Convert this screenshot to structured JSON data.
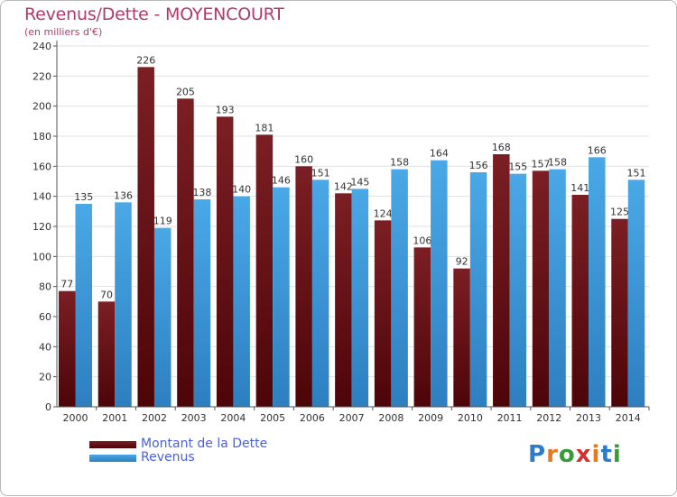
{
  "title": "Revenus/Dette - MOYENCOURT",
  "subtitle": "(en milliers d'€)",
  "logo": {
    "letters": [
      "P",
      "r",
      "o",
      "x",
      "i",
      "t",
      "i"
    ],
    "colors": [
      "#2e7cc9",
      "#e87a1c",
      "#3a9a3a",
      "#d4312e",
      "#e87a1c",
      "#2e7cc9",
      "#3a9a3a"
    ]
  },
  "legend": {
    "debt_label": "Montant de la Dette",
    "revenue_label": "Revenus"
  },
  "colors": {
    "debt": "#7b1f24",
    "debt_dark": "#4d0508",
    "revenue": "#4aa8e6",
    "revenue_dark": "#2d7fc0",
    "axis": "#555555",
    "grid": "#e0e0e0"
  },
  "chart_data": {
    "type": "bar",
    "title": "Revenus/Dette - MOYENCOURT",
    "ylabel": "(en milliers d'€)",
    "xlabel": "",
    "ylim": [
      0,
      240
    ],
    "yticks": [
      0,
      20,
      40,
      60,
      80,
      100,
      120,
      140,
      160,
      180,
      200,
      220,
      240
    ],
    "categories": [
      "2000",
      "2001",
      "2002",
      "2003",
      "2004",
      "2005",
      "2006",
      "2007",
      "2008",
      "2009",
      "2010",
      "2011",
      "2012",
      "2013",
      "2014"
    ],
    "series": [
      {
        "name": "Montant de la Dette",
        "values": [
          77,
          70,
          226,
          205,
          193,
          181,
          160,
          142,
          124,
          106,
          92,
          168,
          157,
          141,
          125
        ]
      },
      {
        "name": "Revenus",
        "values": [
          135,
          136,
          119,
          138,
          140,
          146,
          151,
          145,
          158,
          164,
          156,
          155,
          158,
          166,
          151
        ]
      }
    ]
  }
}
